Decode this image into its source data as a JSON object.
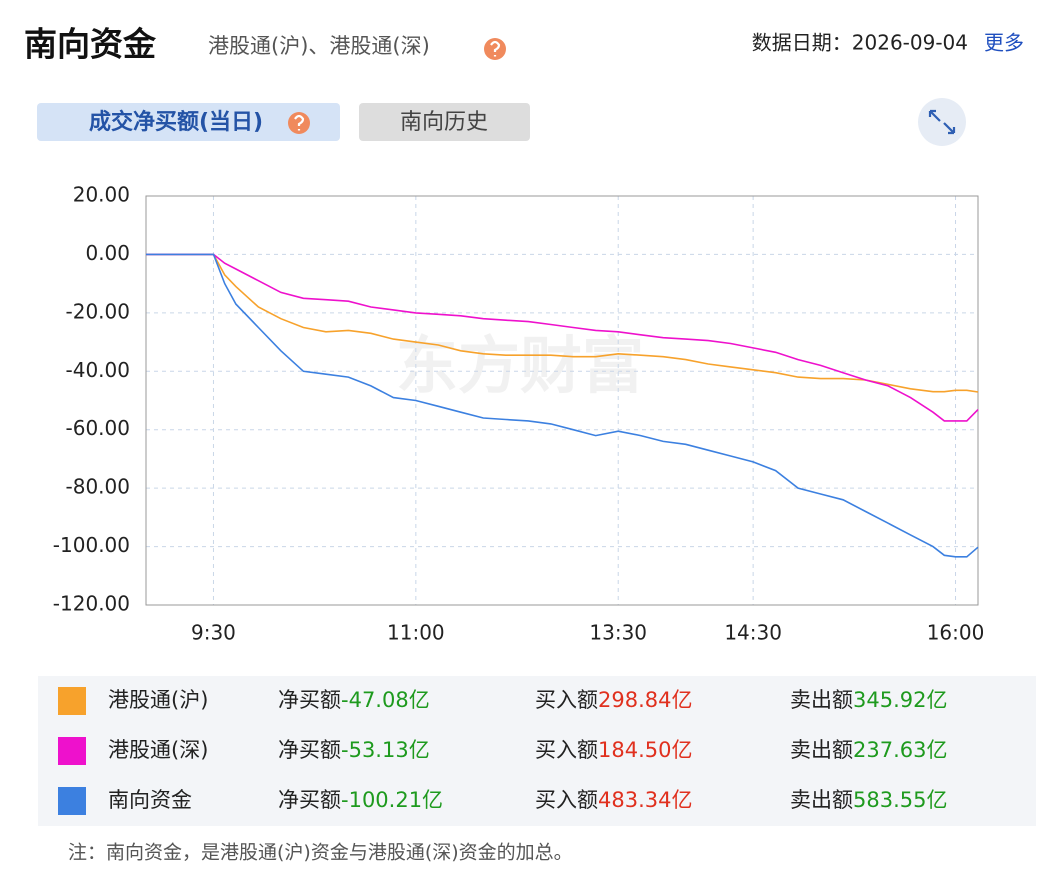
{
  "header": {
    "title": "南向资金",
    "subtitle": "港股通(沪)、港股通(深)",
    "date": "数据日期：2026-09-04",
    "more": "更多"
  },
  "tabs": [
    "成交净买额(当日)",
    "南向历史"
  ],
  "chart_data": {
    "type": "line",
    "watermark": "东方财富",
    "x": [
      0,
      10,
      20,
      30,
      35,
      40,
      50,
      60,
      70,
      80,
      90,
      100,
      110,
      120,
      130,
      140,
      150,
      160,
      170,
      180,
      190,
      200,
      210,
      220,
      230,
      240,
      250,
      260,
      270,
      280,
      290,
      300,
      310,
      320,
      330,
      340,
      350,
      355,
      360,
      365,
      370
    ],
    "xlim": [
      0,
      370
    ],
    "xticks": [
      {
        "value": 30,
        "label": "9:30"
      },
      {
        "value": 120,
        "label": "11:00"
      },
      {
        "value": 210,
        "label": "13:30"
      },
      {
        "value": 270,
        "label": "14:30"
      },
      {
        "value": 360,
        "label": "16:00"
      }
    ],
    "ylim": [
      -120,
      20
    ],
    "yticks": [
      {
        "value": -120,
        "label": "-120.00"
      },
      {
        "value": -100,
        "label": "-100.00"
      },
      {
        "value": -80,
        "label": "-80.00"
      },
      {
        "value": -60,
        "label": "-60.00"
      },
      {
        "value": -40,
        "label": "-40.00"
      },
      {
        "value": -20,
        "label": "-20.00"
      },
      {
        "value": 0,
        "label": "0.00"
      },
      {
        "value": 20,
        "label": "20.00"
      }
    ],
    "grid": true,
    "series": [
      {
        "name": "港股通(沪)",
        "color": "#f7a22c",
        "values": [
          0,
          0,
          0,
          0,
          -7,
          -11,
          -18,
          -22,
          -25,
          -26.5,
          -26,
          -27,
          -29,
          -30,
          -31,
          -33,
          -34,
          -34.5,
          -34.5,
          -34.5,
          -35,
          -35,
          -34,
          -34.5,
          -35,
          -36,
          -37.5,
          -38.5,
          -39.5,
          -40.5,
          -42,
          -42.5,
          -42.5,
          -43,
          -44.5,
          -46,
          -47,
          -47,
          -46.5,
          -46.5,
          -47.08
        ]
      },
      {
        "name": "港股通(深)",
        "color": "#ee11cc",
        "values": [
          0,
          0,
          0,
          0,
          -3,
          -5,
          -9,
          -13,
          -15,
          -15.5,
          -16,
          -18,
          -19,
          -20,
          -20.5,
          -21,
          -22,
          -22.5,
          -23,
          -24,
          -25,
          -26,
          -26.5,
          -27.5,
          -28.5,
          -29,
          -29.5,
          -30.5,
          -32,
          -33.5,
          -36,
          -38,
          -40.5,
          -43,
          -45,
          -49,
          -54,
          -57,
          -57,
          -57,
          -53.13
        ]
      },
      {
        "name": "南向资金",
        "color": "#3c80e0",
        "values": [
          0,
          0,
          0,
          0,
          -10,
          -17,
          -25,
          -33,
          -40,
          -41,
          -42,
          -45,
          -49,
          -50,
          -52,
          -54,
          -56,
          -56.5,
          -57,
          -58,
          -60,
          -62,
          -60.5,
          -62,
          -64,
          -65,
          -67,
          -69,
          -71,
          -74,
          -80,
          -82,
          -84,
          -88,
          -92,
          -96,
          -100,
          -103,
          -103.5,
          -103.5,
          -100.21
        ]
      }
    ]
  },
  "summary_labels": {
    "net": "净买额",
    "buy": "买入额",
    "sell": "卖出额"
  },
  "summary": [
    {
      "net": "-47.08亿",
      "buy": "298.84亿",
      "sell": "345.92亿"
    },
    {
      "net": "-53.13亿",
      "buy": "184.50亿",
      "sell": "237.63亿"
    },
    {
      "net": "-100.21亿",
      "buy": "483.34亿",
      "sell": "583.55亿"
    }
  ],
  "note": "注：南向资金，是港股通(沪)资金与港股通(深)资金的加总。"
}
